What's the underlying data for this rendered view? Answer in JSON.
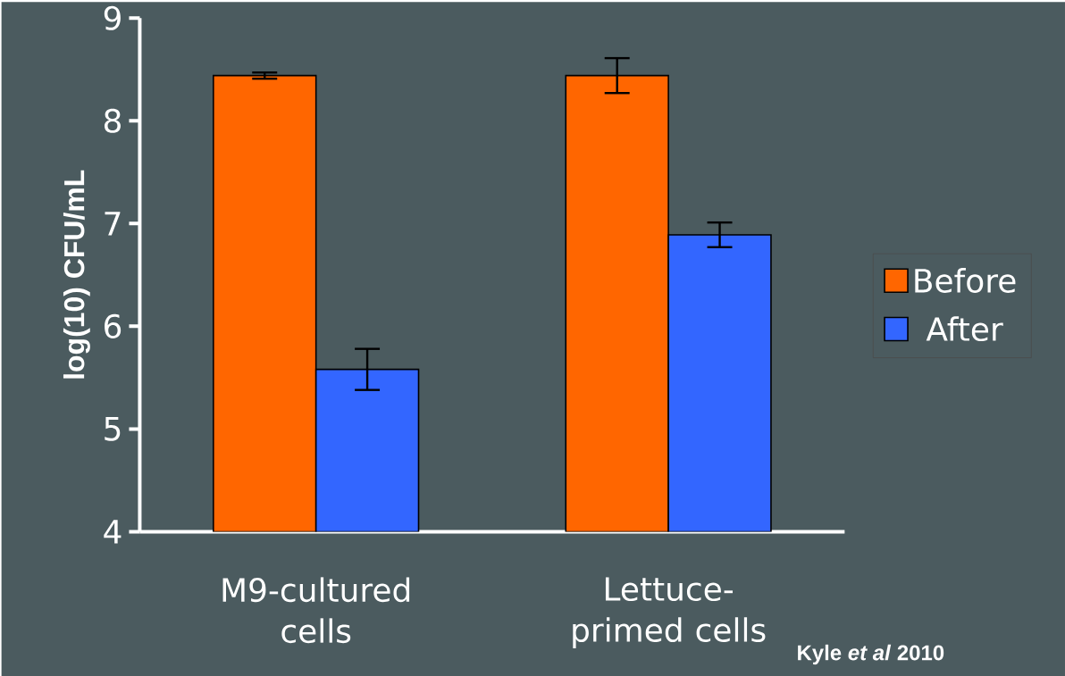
{
  "chart_data": {
    "type": "bar",
    "ylabel": "log(10) CFU/mL",
    "categories": [
      "M9-cultured cells",
      "Lettuce-primed cells"
    ],
    "series": [
      {
        "name": "Before",
        "color": "#ff6600",
        "values": [
          8.44,
          8.44
        ],
        "errors": [
          0.03,
          0.17
        ]
      },
      {
        "name": "After",
        "color": "#3366ff",
        "values": [
          5.58,
          6.89
        ],
        "errors": [
          0.2,
          0.12
        ]
      }
    ],
    "ylim": [
      4,
      9
    ],
    "yticks": [
      4,
      5,
      6,
      7,
      8,
      9
    ],
    "legend": "right",
    "annotations": [
      "Kyle *et al* 2010"
    ]
  }
}
